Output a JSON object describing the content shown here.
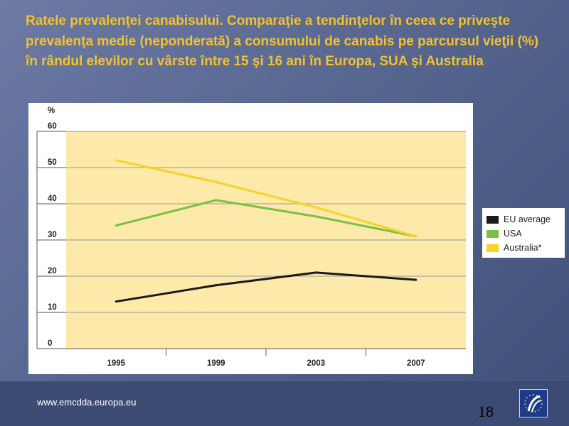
{
  "slide": {
    "title": "Ratele prevalenţei canabisului. Comparaţie a tendinţelor în ceea ce priveşte prevalenţa medie (neponderată) a consumului de canabis pe parcursul vieţii (%) în rândul elevilor cu vârste între 15 şi 16 ani în Europa, SUA şi Australia",
    "footer_url": "www.emcdda.europa.eu",
    "page_number": "18"
  },
  "colors": {
    "title": "#f2c230",
    "plot_bg": "#fde9a9",
    "eu": "#1a1a1a",
    "usa": "#7ac143",
    "australia": "#f5d327"
  },
  "chart_data": {
    "type": "line",
    "y_unit_label": "%",
    "x": [
      "1995",
      "1999",
      "2003",
      "2007"
    ],
    "ylim": [
      0,
      60
    ],
    "yticks": [
      0,
      10,
      20,
      30,
      40,
      50,
      60
    ],
    "grid": true,
    "legend_position": "right",
    "series": [
      {
        "name": "EU average",
        "color": "#1a1a1a",
        "values": [
          13,
          17.5,
          21,
          19
        ]
      },
      {
        "name": "USA",
        "color": "#7ac143",
        "values": [
          34,
          41,
          36.5,
          31
        ]
      },
      {
        "name": "Australia*",
        "color": "#f5d327",
        "values": [
          52,
          46,
          39,
          31
        ]
      }
    ]
  }
}
